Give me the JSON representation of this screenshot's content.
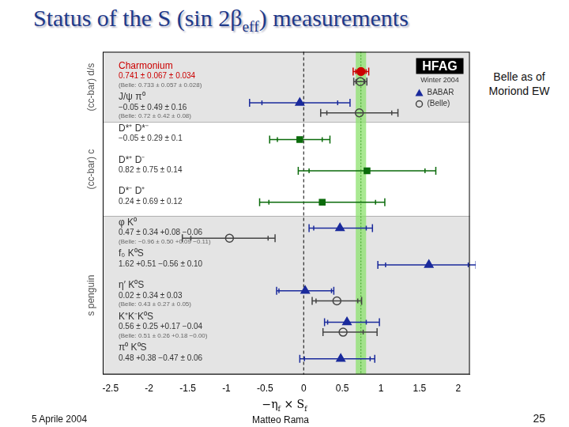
{
  "page": {
    "title": [
      {
        "t": "Status of the S (sin 2β"
      },
      {
        "t": "eff",
        "sub": true
      },
      {
        "t": ") measurements"
      }
    ],
    "note": [
      "Belle as of",
      "Moriond EW"
    ],
    "footer": {
      "date": "5 Aprile 2004",
      "author": "Matteo Rama",
      "page": "25"
    }
  },
  "chart_data": {
    "type": "scatter",
    "x_label": [
      {
        "t": "−η"
      },
      {
        "t": "f",
        "sub": true
      },
      {
        "t": " × S"
      },
      {
        "t": "f",
        "sub": true
      }
    ],
    "xlim": [
      -2.6,
      2.15
    ],
    "xticks": [
      -2.5,
      -2,
      -1.5,
      -1,
      -0.5,
      0,
      0.5,
      1,
      1.5,
      2
    ],
    "grid": false,
    "legend": "top-right",
    "badge": {
      "title": "HFAG",
      "subtitle": "Winter 2004"
    },
    "series": [
      {
        "name": "BABAR",
        "color": "#1a2a9c",
        "marker": "triangle"
      },
      {
        "name": "(Belle)",
        "color": "#444444",
        "marker": "open_circle"
      }
    ],
    "reference_line": 0,
    "band": {
      "center": 0.741,
      "half_width": 0.067
    },
    "groups": [
      {
        "label": "(cc-bar) d/s",
        "rows": [
          {
            "label": "Charmonium",
            "color": "#cc0000",
            "babar": {
              "value": 0.741,
              "stat_plus": 0.067,
              "stat_minus": 0.067,
              "syst_plus": 0.034,
              "syst_minus": 0.034,
              "label": "0.741 ± 0.067 ± 0.034",
              "color": "#cc0000",
              "marker": "circle"
            },
            "belle": {
              "value": 0.733,
              "stat_plus": 0.057,
              "stat_minus": 0.057,
              "syst_plus": 0.028,
              "syst_minus": 0.028,
              "label": "(Belle: 0.733 ± 0.057 ± 0.028)"
            }
          },
          {
            "label": "J/ψ π⁰",
            "color": "#333333",
            "babar": {
              "value": -0.05,
              "stat_plus": 0.49,
              "stat_minus": 0.49,
              "syst_plus": 0.16,
              "syst_minus": 0.16,
              "label": "−0.05 ± 0.49 ± 0.16",
              "color": "#1a2a9c",
              "marker": "triangle"
            },
            "belle": {
              "value": 0.72,
              "stat_plus": 0.42,
              "stat_minus": 0.42,
              "syst_plus": 0.08,
              "syst_minus": 0.08,
              "label": "(Belle: 0.72 ± 0.42 ± 0.08)"
            }
          }
        ]
      },
      {
        "label": "(cc-bar) c",
        "rows": [
          {
            "label": "D*⁺ D*⁻",
            "color": "#333333",
            "babar": {
              "value": -0.05,
              "stat_plus": 0.29,
              "stat_minus": 0.29,
              "syst_plus": 0.1,
              "syst_minus": 0.1,
              "label": "−0.05 ± 0.29 ± 0.1",
              "color": "#0b6b0b",
              "marker": "square"
            }
          },
          {
            "label": "D*⁺ D⁻",
            "color": "#333333",
            "babar": {
              "value": 0.82,
              "stat_plus": 0.75,
              "stat_minus": 0.75,
              "syst_plus": 0.14,
              "syst_minus": 0.14,
              "label": "0.82 ± 0.75 ± 0.14",
              "color": "#0b6b0b",
              "marker": "square"
            }
          },
          {
            "label": "D*⁻ D⁺",
            "color": "#333333",
            "babar": {
              "value": 0.24,
              "stat_plus": 0.69,
              "stat_minus": 0.69,
              "syst_plus": 0.12,
              "syst_minus": 0.12,
              "label": "0.24 ± 0.69 ± 0.12",
              "color": "#0b6b0b",
              "marker": "square"
            }
          }
        ]
      },
      {
        "label": "s penguin",
        "rows": [
          {
            "label": "φ K⁰",
            "color": "#333333",
            "babar": {
              "value": 0.47,
              "stat_plus": 0.34,
              "stat_minus": 0.34,
              "syst_plus": 0.08,
              "syst_minus": 0.06,
              "label": "0.47 ± 0.34 +0.08 −0.06",
              "color": "#1a2a9c",
              "marker": "triangle"
            },
            "belle": {
              "value": -0.96,
              "stat_plus": 0.5,
              "stat_minus": 0.5,
              "syst_plus": 0.09,
              "syst_minus": 0.11,
              "label": "(Belle: −0.96 ± 0.50 +0.09 −0.11)"
            }
          },
          {
            "label": "f₀ K⁰S",
            "color": "#333333",
            "babar": {
              "value": 1.62,
              "stat_plus": 0.51,
              "stat_minus": 0.56,
              "syst_plus": 0.1,
              "syst_minus": 0.1,
              "label": "1.62 +0.51 −0.56 ± 0.10",
              "color": "#1a2a9c",
              "marker": "triangle"
            }
          },
          {
            "label": "η′ K⁰S",
            "color": "#333333",
            "babar": {
              "value": 0.02,
              "stat_plus": 0.34,
              "stat_minus": 0.34,
              "syst_plus": 0.03,
              "syst_minus": 0.03,
              "label": "0.02 ± 0.34 ± 0.03",
              "color": "#1a2a9c",
              "marker": "triangle"
            },
            "belle": {
              "value": 0.43,
              "stat_plus": 0.27,
              "stat_minus": 0.27,
              "syst_plus": 0.05,
              "syst_minus": 0.05,
              "label": "(Belle: 0.43 ± 0.27 ± 0.05)"
            }
          },
          {
            "label": "K⁺K⁻K⁰S",
            "color": "#333333",
            "babar": {
              "value": 0.56,
              "stat_plus": 0.25,
              "stat_minus": 0.25,
              "syst_plus": 0.17,
              "syst_minus": 0.04,
              "label": "0.56 ± 0.25 +0.17 −0.04",
              "color": "#1a2a9c",
              "marker": "triangle"
            },
            "belle": {
              "value": 0.51,
              "stat_plus": 0.26,
              "stat_minus": 0.26,
              "syst_plus": 0.18,
              "syst_minus": 0.0,
              "label": "(Belle: 0.51 ± 0.26 +0.18 −0.00)"
            }
          },
          {
            "label": "π⁰ K⁰S",
            "color": "#333333",
            "babar": {
              "value": 0.48,
              "stat_plus": 0.38,
              "stat_minus": 0.47,
              "syst_plus": 0.06,
              "syst_minus": 0.06,
              "label": "0.48 +0.38 −0.47 ± 0.06",
              "color": "#1a2a9c",
              "marker": "triangle"
            }
          }
        ]
      }
    ]
  }
}
